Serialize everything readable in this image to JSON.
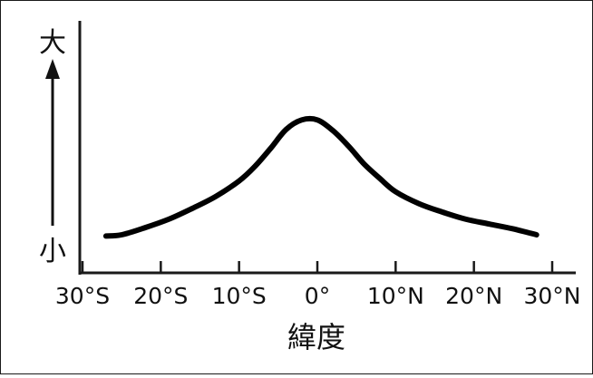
{
  "chart_data": {
    "type": "line",
    "title": "",
    "xlabel": "緯度",
    "ylabel_high": "大",
    "ylabel_low": "小",
    "x_tick_labels": [
      "30°S",
      "20°S",
      "10°S",
      "0°",
      "10°N",
      "20°N",
      "30°N"
    ],
    "x_tick_values": [
      -30,
      -20,
      -10,
      0,
      10,
      20,
      30
    ],
    "xlim": [
      -30,
      30
    ],
    "ylim": [
      0,
      1
    ],
    "y_relative_scale": true,
    "grid": false,
    "series": [
      {
        "x": [
          -27,
          -25,
          -22,
          -19,
          -16,
          -13,
          -10,
          -8,
          -6,
          -4,
          -2,
          0,
          2,
          4,
          6,
          8,
          10,
          13,
          16,
          19,
          22,
          25,
          28
        ],
        "y": [
          0.02,
          0.03,
          0.09,
          0.16,
          0.25,
          0.35,
          0.48,
          0.6,
          0.75,
          0.91,
          0.99,
          0.99,
          0.9,
          0.77,
          0.62,
          0.5,
          0.39,
          0.29,
          0.22,
          0.16,
          0.12,
          0.08,
          0.03
        ]
      }
    ],
    "colors": {
      "line": "#000000",
      "axis": "#1a1a1a"
    }
  }
}
